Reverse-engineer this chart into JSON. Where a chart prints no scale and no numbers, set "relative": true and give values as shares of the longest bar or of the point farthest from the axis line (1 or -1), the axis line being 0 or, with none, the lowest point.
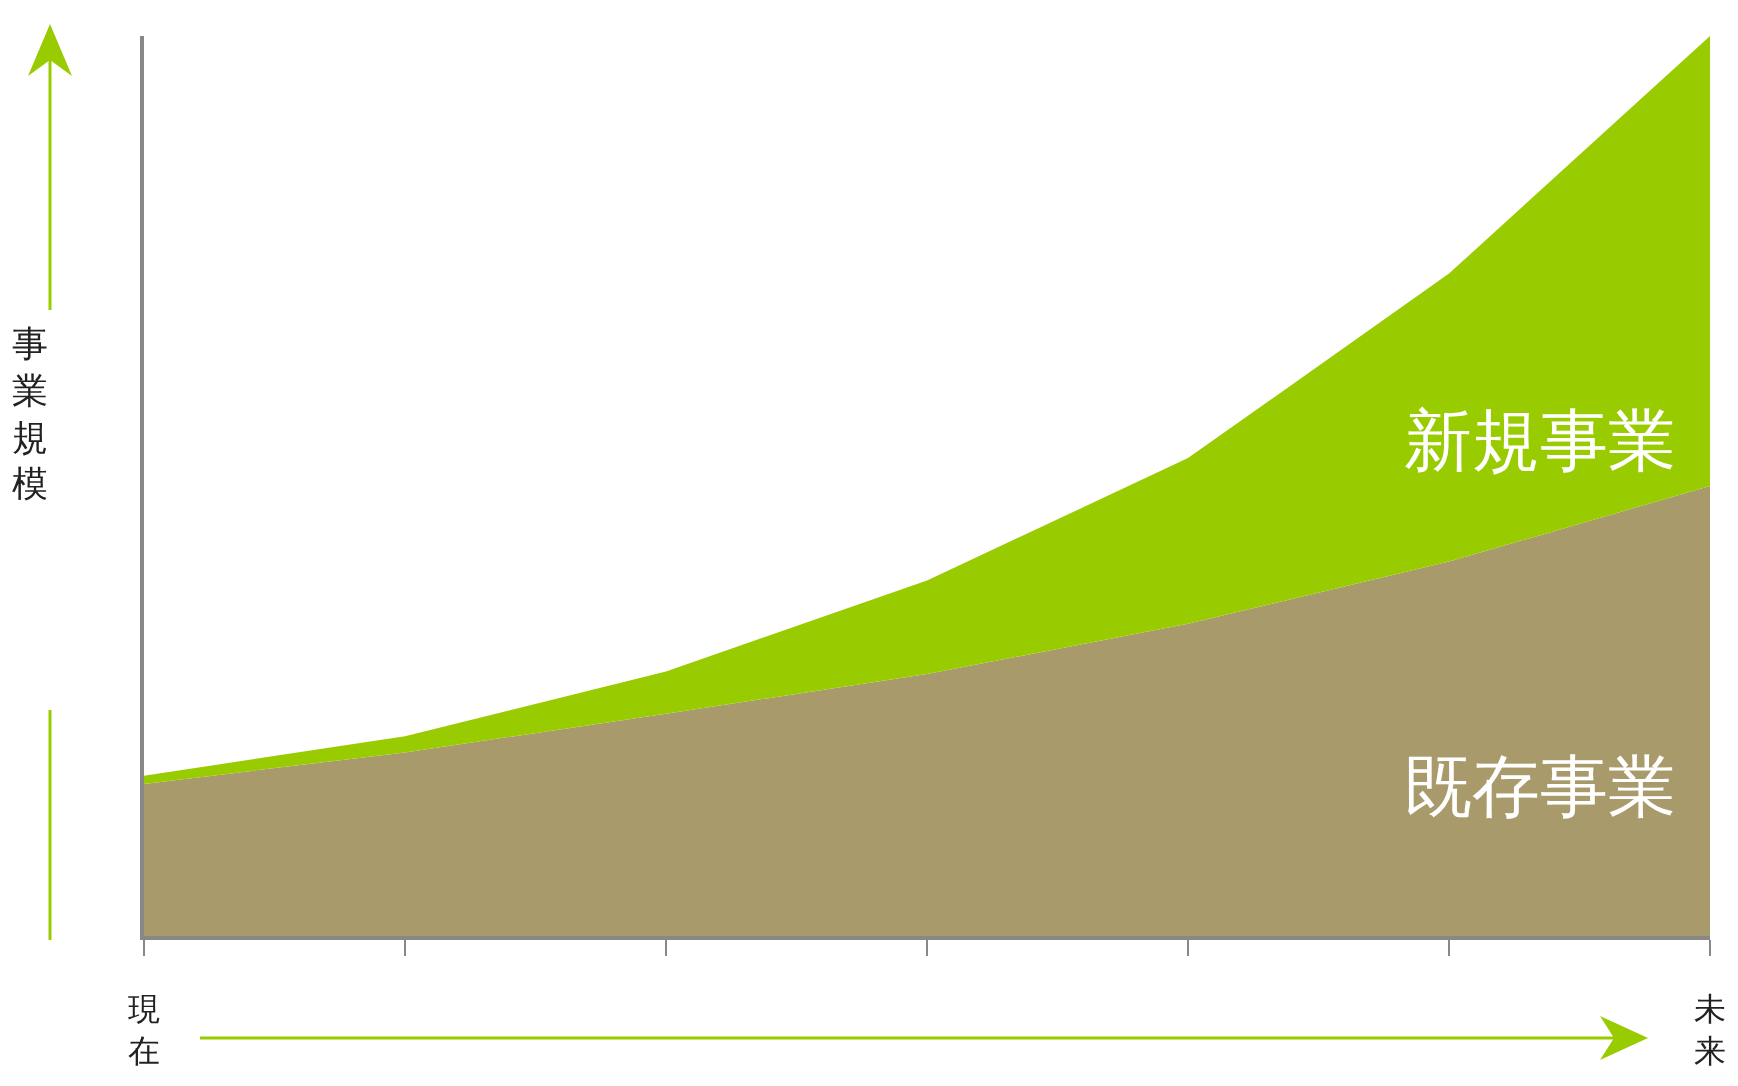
{
  "chart_data": {
    "type": "area",
    "relative": true,
    "stacked": true,
    "ylabel": "事業規模",
    "categories": [
      null,
      null,
      null,
      null,
      null,
      null,
      null
    ],
    "series": [
      {
        "name": "既存事業",
        "color": "#a89a6a",
        "values": [
          0.169,
          0.204,
          0.247,
          0.291,
          0.347,
          0.416,
          0.5
        ]
      },
      {
        "name": "新規事業",
        "color": "#99cc00",
        "values": [
          0.009,
          0.018,
          0.047,
          0.104,
          0.184,
          0.32,
          0.5
        ]
      }
    ],
    "annotations": [
      "現在",
      "未来"
    ],
    "grid": false,
    "legend": false
  }
}
